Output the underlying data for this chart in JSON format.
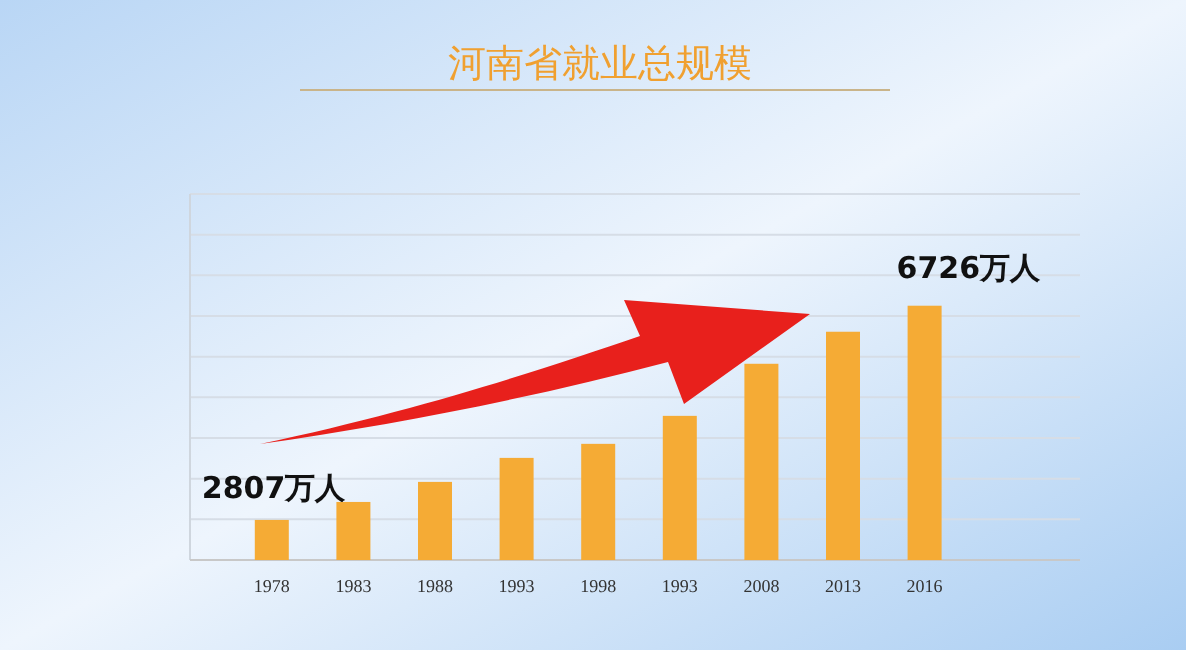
{
  "chart_data": {
    "type": "bar",
    "title": "河南省就业总规模",
    "categories": [
      "1978",
      "1983",
      "1988",
      "1993",
      "1998",
      "1993",
      "2008",
      "2013",
      "2016"
    ],
    "values": [
      2807,
      3136,
      3503,
      3942,
      4199,
      4711,
      5664,
      6250,
      6726
    ],
    "value_labels": [
      "2807万人",
      null,
      null,
      null,
      null,
      null,
      null,
      null,
      "6726万人"
    ],
    "color": "#f5ab35",
    "ylim": [
      2074,
      8770
    ],
    "yticks": [
      {
        "value": 2074,
        "label": null
      },
      {
        "value": 2818,
        "label": null
      },
      {
        "value": 3562,
        "label": null
      },
      {
        "value": 4306,
        "label": null
      },
      {
        "value": 5050,
        "label": null
      },
      {
        "value": 5794,
        "label": null
      },
      {
        "value": 6538,
        "label": null
      },
      {
        "value": 7282,
        "label": null
      },
      {
        "value": 8026,
        "label": null
      },
      {
        "value": 8770,
        "label": null
      }
    ],
    "grid": "y"
  }
}
